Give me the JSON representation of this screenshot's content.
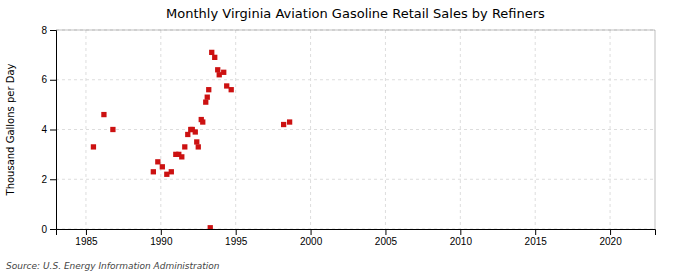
{
  "chart_data": {
    "type": "scatter",
    "title": "Monthly Virginia Aviation Gasoline Retail Sales by Refiners",
    "ylabel": "Thousand Gallons per Day",
    "source": "Source: U.S. Energy Information Administration",
    "color": "#cc1111",
    "marker": "square",
    "grid": true,
    "x": [
      1985.5,
      1986.2,
      1986.8,
      1989.5,
      1989.8,
      1990.1,
      1990.4,
      1990.7,
      1991.0,
      1991.2,
      1991.4,
      1991.6,
      1991.8,
      1992.0,
      1992.1,
      1992.3,
      1992.4,
      1992.5,
      1992.7,
      1992.8,
      1993.0,
      1993.1,
      1993.2,
      1993.4,
      1993.6,
      1993.8,
      1993.9,
      1994.2,
      1994.4,
      1994.7,
      1998.2,
      1998.6,
      1993.3
    ],
    "values": [
      3.3,
      4.6,
      4.0,
      2.3,
      2.7,
      2.5,
      2.2,
      2.3,
      3.0,
      3.0,
      2.9,
      3.3,
      3.8,
      4.0,
      4.0,
      3.9,
      3.5,
      3.3,
      4.4,
      4.3,
      5.1,
      5.3,
      5.6,
      7.1,
      6.9,
      6.4,
      6.2,
      6.3,
      5.75,
      5.6,
      4.2,
      4.3,
      0.05
    ],
    "xlim": [
      1983,
      2023
    ],
    "ylim": [
      0,
      8
    ],
    "xticks": [
      1985,
      1990,
      1995,
      2000,
      2005,
      2010,
      2015,
      2020
    ],
    "yticks": [
      0,
      2,
      4,
      6,
      8
    ]
  }
}
